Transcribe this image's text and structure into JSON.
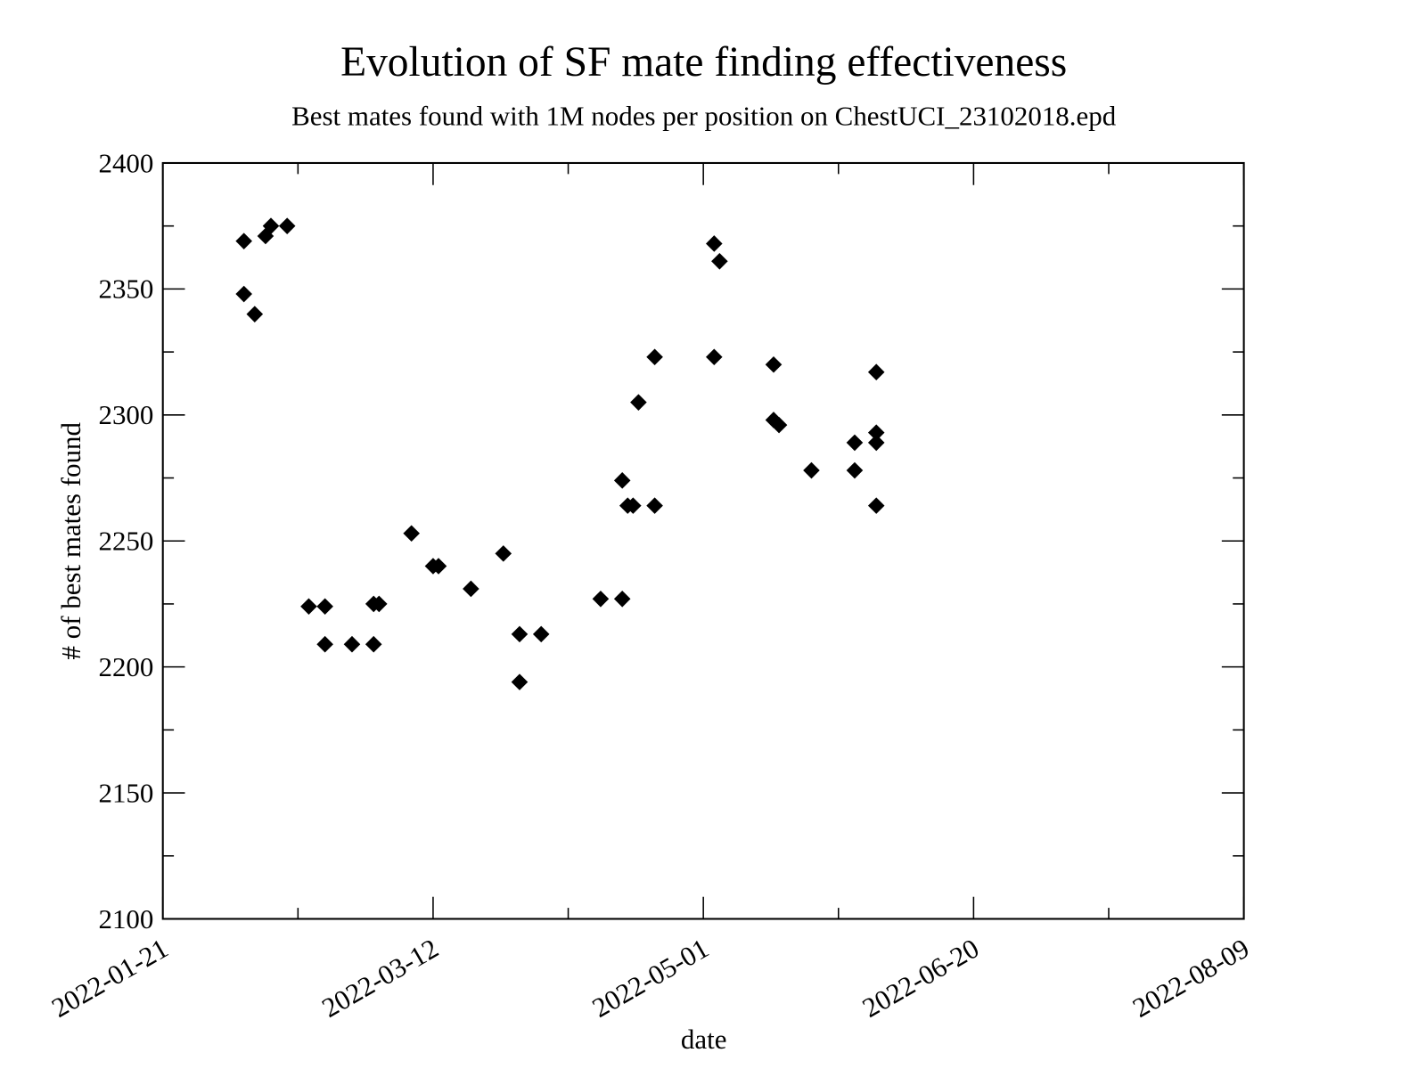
{
  "chart_data": {
    "type": "scatter",
    "title": "Evolution of SF mate finding effectiveness",
    "subtitle": "Best mates found with 1M nodes per position on ChestUCI_23102018.epd",
    "x_label": "date",
    "y_label": "# of best mates found",
    "color": "#000000",
    "marker": "diamond",
    "x": [
      "2022-02-05",
      "2022-02-05",
      "2022-02-07",
      "2022-02-09",
      "2022-02-10",
      "2022-02-13",
      "2022-02-17",
      "2022-02-20",
      "2022-02-20",
      "2022-02-25",
      "2022-03-01",
      "2022-03-01",
      "2022-03-02",
      "2022-03-08",
      "2022-03-12",
      "2022-03-13",
      "2022-03-19",
      "2022-03-25",
      "2022-03-28",
      "2022-03-28",
      "2022-04-01",
      "2022-04-12",
      "2022-04-16",
      "2022-04-16",
      "2022-04-17",
      "2022-04-18",
      "2022-04-19",
      "2022-04-22",
      "2022-04-22",
      "2022-05-03",
      "2022-05-03",
      "2022-05-04",
      "2022-05-14",
      "2022-05-14",
      "2022-05-15",
      "2022-05-21",
      "2022-05-29",
      "2022-05-29",
      "2022-06-02",
      "2022-06-02",
      "2022-06-02",
      "2022-06-02"
    ],
    "values": [
      2369,
      2348,
      2340,
      2371,
      2375,
      2375,
      2224,
      2224,
      2209,
      2209,
      2209,
      2225,
      2225,
      2253,
      2240,
      2240,
      2231,
      2245,
      2213,
      2194,
      2213,
      2227,
      2227,
      2274,
      2264,
      2264,
      2305,
      2323,
      2264,
      2368,
      2323,
      2361,
      2320,
      2298,
      2296,
      2278,
      2278,
      2289,
      2317,
      2293,
      2289,
      2264
    ],
    "xlim": [
      "2022-01-21",
      "2022-08-09"
    ],
    "xticks": [
      "2022-01-21",
      "2022-03-12",
      "2022-05-01",
      "2022-06-20",
      "2022-08-09"
    ],
    "ylim": [
      2100,
      2400
    ],
    "yticks": [
      2100,
      2150,
      2200,
      2250,
      2300,
      2350,
      2400
    ]
  }
}
